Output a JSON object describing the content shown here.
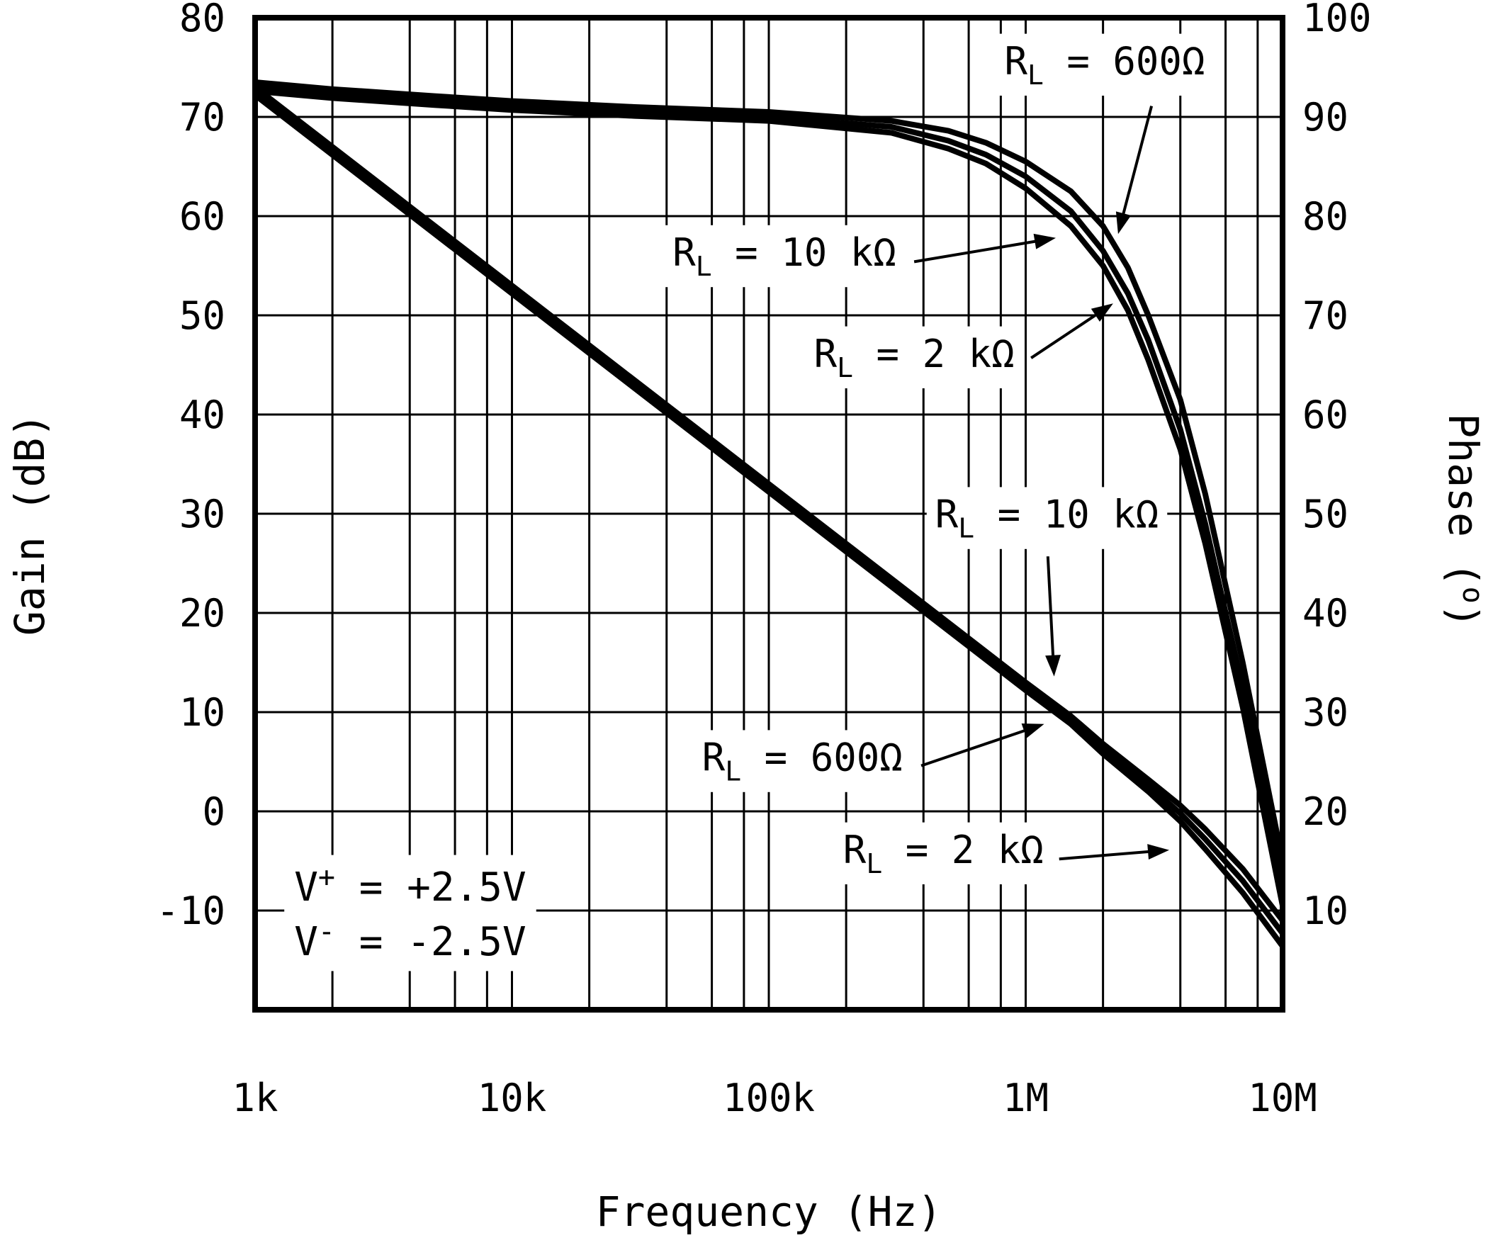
{
  "colors": {
    "ink": "#000000",
    "background": "#ffffff"
  },
  "chart_data": {
    "type": "line",
    "title": "",
    "x_axis": {
      "label": "Frequency (Hz)",
      "scale": "log",
      "min": 1000,
      "max": 10000000,
      "major_ticks": [
        1000,
        10000,
        100000,
        1000000,
        10000000
      ],
      "tick_labels": [
        "1k",
        "10k",
        "100k",
        "1M",
        "10M"
      ],
      "minor_per_decade": [
        2,
        4,
        6,
        8
      ]
    },
    "y_left": {
      "label": "Gain (dB)",
      "min": -20,
      "max": 80,
      "grid_step": 10,
      "ticks": [
        80,
        70,
        60,
        50,
        40,
        30,
        20,
        10,
        0,
        -10
      ],
      "tick_labels": [
        "80",
        "70",
        "60",
        "50",
        "40",
        "30",
        "20",
        "10",
        "0",
        "-10"
      ]
    },
    "y_right": {
      "label_pre": "Phase (",
      "label_sup": "o",
      "label_post": ")",
      "min": 0,
      "max": 100,
      "ticks": [
        100,
        90,
        80,
        70,
        60,
        50,
        40,
        30,
        20,
        10
      ],
      "tick_labels": [
        "100",
        "90",
        "80",
        "70",
        "60",
        "50",
        "40",
        "30",
        "20",
        "10"
      ]
    },
    "series": [
      {
        "name": "Phase RL 600 ohm",
        "axis": "right",
        "x": [
          1000,
          2000,
          5000,
          10000,
          30000,
          100000,
          300000,
          500000,
          700000,
          1000000,
          1500000,
          2000000,
          2500000,
          3000000,
          4000000,
          5000000,
          7000000,
          10000000
        ],
        "y": [
          93.5,
          92.8,
          92.1,
          91.6,
          91,
          90.5,
          89.6,
          88.6,
          87.4,
          85.5,
          82.5,
          79,
          74.8,
          70,
          61.5,
          52,
          35,
          15
        ]
      },
      {
        "name": "Phase RL 10 kohm",
        "axis": "right",
        "x": [
          1000,
          2000,
          5000,
          10000,
          30000,
          100000,
          300000,
          500000,
          700000,
          1000000,
          1500000,
          2000000,
          2500000,
          3000000,
          4000000,
          5000000,
          7000000,
          10000000
        ],
        "y": [
          93,
          92.3,
          91.6,
          91.1,
          90.5,
          90,
          89,
          87.6,
          86.2,
          84,
          80.5,
          76.5,
          72.2,
          67.5,
          58.5,
          49,
          32.5,
          12.5
        ]
      },
      {
        "name": "Phase RL 2 kohm",
        "axis": "right",
        "x": [
          1000,
          2000,
          5000,
          10000,
          30000,
          100000,
          300000,
          500000,
          700000,
          1000000,
          1500000,
          2000000,
          2500000,
          3000000,
          4000000,
          5000000,
          7000000,
          10000000
        ],
        "y": [
          92.6,
          91.9,
          91.2,
          90.7,
          90.1,
          89.6,
          88.4,
          86.8,
          85.3,
          82.8,
          79,
          75,
          70.5,
          65.5,
          56.5,
          47,
          30.5,
          10.5
        ]
      },
      {
        "name": "Gain RL 10 kohm",
        "axis": "left",
        "x": [
          1000,
          10000,
          100000,
          1000000,
          1500000,
          2000000,
          3000000,
          4000000,
          5000000,
          7000000,
          10000000
        ],
        "y": [
          73,
          53,
          33,
          13,
          9.6,
          6.8,
          3.2,
          0.6,
          -1.8,
          -5.8,
          -11
        ]
      },
      {
        "name": "Gain RL 2 kohm",
        "axis": "left",
        "x": [
          1000,
          10000,
          100000,
          1000000,
          1500000,
          2000000,
          3000000,
          4000000,
          5000000,
          7000000,
          10000000
        ],
        "y": [
          72.6,
          52.6,
          32.6,
          12.6,
          9.2,
          6.3,
          2.6,
          -0.2,
          -2.8,
          -7,
          -12.3
        ]
      },
      {
        "name": "Gain RL 600 ohm",
        "axis": "left",
        "x": [
          1000,
          10000,
          100000,
          1000000,
          1500000,
          2000000,
          3000000,
          4000000,
          5000000,
          7000000,
          10000000
        ],
        "y": [
          72.2,
          52.2,
          32.2,
          12.2,
          8.8,
          5.8,
          2,
          -1,
          -3.8,
          -8.2,
          -13.6
        ]
      }
    ],
    "annotations": [
      {
        "label": {
          "pre": "R",
          "sub": "L",
          "post": " = 600Ω"
        },
        "text_f": 2030000,
        "text_g": 74.3,
        "arrow": {
          "f1": 3090000,
          "g1": 71.1,
          "f2": 2290000,
          "g2": 58.2
        }
      },
      {
        "label": {
          "pre": "R",
          "sub": "L",
          "post": " = 10 kΩ"
        },
        "text_f": 115000,
        "text_g": 55.0,
        "arrow": {
          "f1": 368000,
          "g1": 55.4,
          "f2": 1310000,
          "g2": 57.8
        }
      },
      {
        "label": {
          "pre": "R",
          "sub": "L",
          "post": " = 2 kΩ"
        },
        "text_f": 368000,
        "text_g": 44.8,
        "arrow": {
          "f1": 1050000,
          "g1": 45.7,
          "f2": 2190000,
          "g2": 51.2
        }
      },
      {
        "label": {
          "pre": "R",
          "sub": "L",
          "post": " = 10 kΩ"
        },
        "text_f": 1210000,
        "text_g": 28.6,
        "arrow": {
          "f1": 1220000,
          "g1": 25.7,
          "f2": 1290000,
          "g2": 13.6
        }
      },
      {
        "label": {
          "pre": "R",
          "sub": "L",
          "post": " = 600Ω"
        },
        "text_f": 135000,
        "text_g": 4.1,
        "arrow": {
          "f1": 392000,
          "g1": 4.6,
          "f2": 1180000,
          "g2": 8.8
        }
      },
      {
        "label": {
          "pre": "R",
          "sub": "L",
          "post": " = 2 kΩ"
        },
        "text_f": 478000,
        "text_g": -5.2,
        "arrow": {
          "f1": 1350000,
          "g1": -4.8,
          "f2": 3620000,
          "g2": -3.9
        }
      }
    ],
    "inset_text": {
      "f": 1420,
      "lines": [
        {
          "pre": "V",
          "sup": "+",
          "post": " = +2.5V",
          "g": -9.0
        },
        {
          "pre": "V",
          "sup": "-",
          "post": " = -2.5V",
          "g": -14.5
        }
      ]
    }
  }
}
